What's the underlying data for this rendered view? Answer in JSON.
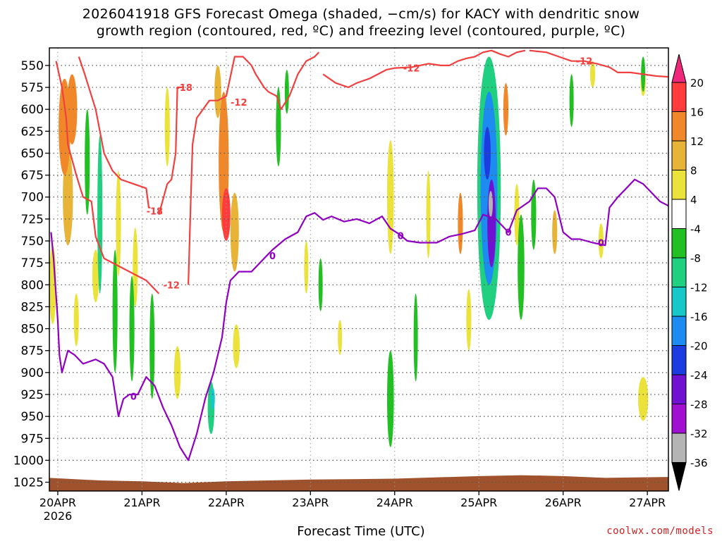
{
  "title_line1": "2026041918 GFS Forecast Omega (shaded, −cm/s) for KACY with dendritic snow",
  "title_line2": "growth region (contoured, red, ºC) and freezing level (contoured, purple, ºC)",
  "xlabel": "Forecast Time (UTC)",
  "credit": "coolwx.com/models",
  "colors": {
    "dgz_contour": "#f04040",
    "freezing_contour": "#9000c0",
    "terrain": "#a0522d",
    "grid": "#555555"
  },
  "chart_data": {
    "type": "heatmap",
    "x_ticks": [
      "20APR",
      "21APR",
      "22APR",
      "23APR",
      "24APR",
      "25APR",
      "26APR",
      "27APR"
    ],
    "x_sub_label": "2026",
    "y_ticks": [
      550,
      575,
      600,
      625,
      650,
      675,
      700,
      725,
      750,
      775,
      800,
      825,
      850,
      875,
      900,
      925,
      950,
      975,
      1000,
      1025
    ],
    "y_range": [
      530,
      1035
    ],
    "y_unit": "hPa",
    "x_range_days": [
      -0.1,
      7.25
    ],
    "grid": true,
    "colorbar": {
      "labels": [
        "20",
        "16",
        "12",
        "8",
        "4",
        "-4",
        "-8",
        "-12",
        "-16",
        "-20",
        "-24",
        "-28",
        "-32",
        "-36"
      ],
      "bins": [
        {
          "from": 16,
          "to": 20,
          "color": "#ff3c3c"
        },
        {
          "from": 12,
          "to": 16,
          "color": "#f0882a"
        },
        {
          "from": 8,
          "to": 12,
          "color": "#e8b438"
        },
        {
          "from": 4,
          "to": 8,
          "color": "#ece23c"
        },
        {
          "from": -4,
          "to": 4,
          "color": "#ffffff"
        },
        {
          "from": -8,
          "to": -4,
          "color": "#22c022"
        },
        {
          "from": -12,
          "to": -8,
          "color": "#20d080"
        },
        {
          "from": -16,
          "to": -12,
          "color": "#18c8c8"
        },
        {
          "from": -20,
          "to": -16,
          "color": "#1c8cf0"
        },
        {
          "from": -24,
          "to": -20,
          "color": "#1c3ce0"
        },
        {
          "from": -28,
          "to": -24,
          "color": "#7010d0"
        },
        {
          "from": -32,
          "to": -28,
          "color": "#a010d0"
        },
        {
          "from": -36,
          "to": -32,
          "color": "#b4b4b4"
        }
      ],
      "top_arrow_color": "#f0287c",
      "bottom_arrow_color": "#000000"
    },
    "omega_blobs": [
      {
        "t": 0.08,
        "p": 620,
        "dt": 0.07,
        "dp": 110,
        "v": 14
      },
      {
        "t": 0.12,
        "p": 700,
        "dt": 0.06,
        "dp": 110,
        "v": 10
      },
      {
        "t": 0.17,
        "p": 600,
        "dt": 0.06,
        "dp": 80,
        "v": 14
      },
      {
        "t": -0.06,
        "p": 800,
        "dt": 0.04,
        "dp": 90,
        "v": 6
      },
      {
        "t": 0.22,
        "p": 840,
        "dt": 0.03,
        "dp": 60,
        "v": 6
      },
      {
        "t": 0.45,
        "p": 790,
        "dt": 0.04,
        "dp": 60,
        "v": 6
      },
      {
        "t": 0.72,
        "p": 730,
        "dt": 0.03,
        "dp": 120,
        "v": 6
      },
      {
        "t": 0.92,
        "p": 780,
        "dt": 0.03,
        "dp": 90,
        "v": 6
      },
      {
        "t": 1.3,
        "p": 620,
        "dt": 0.03,
        "dp": 90,
        "v": 6
      },
      {
        "t": 1.42,
        "p": 900,
        "dt": 0.04,
        "dp": 60,
        "v": 6
      },
      {
        "t": 1.97,
        "p": 660,
        "dt": 0.06,
        "dp": 160,
        "v": 14
      },
      {
        "t": 2.0,
        "p": 720,
        "dt": 0.05,
        "dp": 60,
        "v": 18
      },
      {
        "t": 1.9,
        "p": 580,
        "dt": 0.04,
        "dp": 60,
        "v": 8
      },
      {
        "t": 2.1,
        "p": 740,
        "dt": 0.05,
        "dp": 90,
        "v": 10
      },
      {
        "t": 2.12,
        "p": 870,
        "dt": 0.04,
        "dp": 50,
        "v": 6
      },
      {
        "t": 2.95,
        "p": 780,
        "dt": 0.02,
        "dp": 60,
        "v": 6
      },
      {
        "t": 3.35,
        "p": 860,
        "dt": 0.02,
        "dp": 40,
        "v": 6
      },
      {
        "t": 3.95,
        "p": 700,
        "dt": 0.04,
        "dp": 130,
        "v": 6
      },
      {
        "t": 4.4,
        "p": 720,
        "dt": 0.02,
        "dp": 100,
        "v": 6
      },
      {
        "t": 4.78,
        "p": 730,
        "dt": 0.03,
        "dp": 70,
        "v": 12
      },
      {
        "t": 4.88,
        "p": 840,
        "dt": 0.03,
        "dp": 70,
        "v": 6
      },
      {
        "t": 5.32,
        "p": 600,
        "dt": 0.03,
        "dp": 60,
        "v": 12
      },
      {
        "t": 5.45,
        "p": 720,
        "dt": 0.03,
        "dp": 70,
        "v": 6
      },
      {
        "t": 5.9,
        "p": 740,
        "dt": 0.03,
        "dp": 50,
        "v": 10
      },
      {
        "t": 6.45,
        "p": 750,
        "dt": 0.03,
        "dp": 40,
        "v": 6
      },
      {
        "t": 6.35,
        "p": 560,
        "dt": 0.03,
        "dp": 30,
        "v": 6
      },
      {
        "t": 6.95,
        "p": 570,
        "dt": 0.03,
        "dp": 30,
        "v": 6
      },
      {
        "t": 6.95,
        "p": 930,
        "dt": 0.06,
        "dp": 50,
        "v": 6
      },
      {
        "t": 0.35,
        "p": 660,
        "dt": 0.03,
        "dp": 120,
        "v": -8
      },
      {
        "t": 0.5,
        "p": 720,
        "dt": 0.03,
        "dp": 180,
        "v": -10
      },
      {
        "t": 0.68,
        "p": 830,
        "dt": 0.03,
        "dp": 140,
        "v": -8
      },
      {
        "t": 0.88,
        "p": 850,
        "dt": 0.03,
        "dp": 120,
        "v": -8
      },
      {
        "t": 1.12,
        "p": 870,
        "dt": 0.03,
        "dp": 120,
        "v": -8
      },
      {
        "t": 1.82,
        "p": 940,
        "dt": 0.04,
        "dp": 60,
        "v": -10
      },
      {
        "t": 1.84,
        "p": 930,
        "dt": 0.02,
        "dp": 25,
        "v": -16
      },
      {
        "t": 2.62,
        "p": 620,
        "dt": 0.03,
        "dp": 90,
        "v": -8
      },
      {
        "t": 2.72,
        "p": 580,
        "dt": 0.02,
        "dp": 50,
        "v": -8
      },
      {
        "t": 3.12,
        "p": 800,
        "dt": 0.02,
        "dp": 60,
        "v": -8
      },
      {
        "t": 3.95,
        "p": 930,
        "dt": 0.04,
        "dp": 110,
        "v": -8
      },
      {
        "t": 4.25,
        "p": 860,
        "dt": 0.02,
        "dp": 100,
        "v": -6
      },
      {
        "t": 5.12,
        "p": 690,
        "dt": 0.14,
        "dp": 300,
        "v": -12
      },
      {
        "t": 5.12,
        "p": 690,
        "dt": 0.1,
        "dp": 220,
        "v": -18
      },
      {
        "t": 5.1,
        "p": 650,
        "dt": 0.04,
        "dp": 60,
        "v": -22
      },
      {
        "t": 5.15,
        "p": 730,
        "dt": 0.05,
        "dp": 100,
        "v": -26
      },
      {
        "t": 5.14,
        "p": 708,
        "dt": 0.02,
        "dp": 30,
        "v": -34
      },
      {
        "t": 5.5,
        "p": 780,
        "dt": 0.04,
        "dp": 120,
        "v": -8
      },
      {
        "t": 5.65,
        "p": 720,
        "dt": 0.03,
        "dp": 80,
        "v": -6
      },
      {
        "t": 6.1,
        "p": 590,
        "dt": 0.02,
        "dp": 60,
        "v": -8
      },
      {
        "t": 6.95,
        "p": 560,
        "dt": 0.02,
        "dp": 40,
        "v": -6
      }
    ],
    "contours": [
      {
        "name": "dgz_-18_a",
        "level": -18,
        "color_key": "dgz_contour",
        "points": [
          [
            -0.02,
            545
          ],
          [
            0.05,
            575
          ],
          [
            0.1,
            610
          ],
          [
            0.12,
            640
          ],
          [
            0.22,
            675
          ],
          [
            0.3,
            700
          ],
          [
            0.4,
            705
          ],
          [
            0.45,
            745
          ],
          [
            0.55,
            770
          ],
          [
            1.05,
            795
          ],
          [
            1.2,
            810
          ]
        ]
      },
      {
        "name": "dgz_-18_b",
        "level": -18,
        "color_key": "dgz_contour",
        "points": [
          [
            0.25,
            540
          ],
          [
            0.32,
            560
          ],
          [
            0.45,
            600
          ],
          [
            0.5,
            625
          ],
          [
            0.55,
            650
          ],
          [
            0.65,
            670
          ],
          [
            0.75,
            680
          ],
          [
            1.05,
            690
          ],
          [
            1.08,
            712
          ],
          [
            1.1,
            712
          ]
        ]
      },
      {
        "name": "dgz_-18_c",
        "level": -18,
        "color_key": "dgz_contour",
        "points": [
          [
            1.2,
            720
          ],
          [
            1.3,
            685
          ],
          [
            1.35,
            680
          ],
          [
            1.4,
            650
          ],
          [
            1.42,
            575
          ],
          [
            1.5,
            575
          ]
        ]
      },
      {
        "name": "dgz_-12_a",
        "level": -12,
        "color_key": "dgz_contour",
        "points": [
          [
            1.55,
            800
          ],
          [
            1.58,
            700
          ],
          [
            1.6,
            640
          ],
          [
            1.65,
            610
          ],
          [
            1.8,
            590
          ],
          [
            1.9,
            590
          ],
          [
            2.0,
            585
          ],
          [
            2.1,
            540
          ],
          [
            2.2,
            540
          ],
          [
            2.3,
            550
          ],
          [
            2.35,
            560
          ],
          [
            2.45,
            575
          ],
          [
            2.5,
            580
          ],
          [
            2.6,
            585
          ],
          [
            2.65,
            600
          ],
          [
            2.75,
            585
          ],
          [
            2.85,
            560
          ],
          [
            2.95,
            545
          ],
          [
            3.05,
            540
          ],
          [
            3.1,
            535
          ]
        ]
      },
      {
        "name": "dgz_-12_b",
        "level": -12,
        "color_key": "dgz_contour",
        "points": [
          [
            3.15,
            560
          ],
          [
            3.3,
            570
          ],
          [
            3.45,
            575
          ],
          [
            3.55,
            570
          ],
          [
            3.7,
            565
          ],
          [
            3.8,
            560
          ],
          [
            3.9,
            555
          ],
          [
            4.0,
            553
          ],
          [
            4.2,
            552
          ],
          [
            4.3,
            550
          ],
          [
            4.4,
            548
          ],
          [
            4.55,
            550
          ],
          [
            4.65,
            550
          ],
          [
            4.75,
            545
          ],
          [
            4.85,
            542
          ],
          [
            4.95,
            540
          ],
          [
            5.05,
            535
          ],
          [
            5.15,
            533
          ],
          [
            5.25,
            537
          ],
          [
            5.35,
            540
          ],
          [
            5.45,
            535
          ],
          [
            5.55,
            533
          ]
        ]
      },
      {
        "name": "dgz_-12_c",
        "level": -12,
        "color_key": "dgz_contour",
        "points": [
          [
            5.6,
            533
          ],
          [
            5.8,
            535
          ],
          [
            5.95,
            540
          ],
          [
            6.1,
            545
          ],
          [
            6.25,
            545
          ],
          [
            6.4,
            548
          ],
          [
            6.55,
            552
          ],
          [
            6.65,
            558
          ],
          [
            6.8,
            558
          ],
          [
            6.95,
            560
          ],
          [
            7.1,
            562
          ],
          [
            7.25,
            563
          ]
        ]
      },
      {
        "name": "freezing_0",
        "level": 0,
        "color_key": "freezing_contour",
        "points": [
          [
            -0.08,
            740
          ],
          [
            -0.05,
            770
          ],
          [
            0.0,
            840
          ],
          [
            0.02,
            880
          ],
          [
            0.05,
            900
          ],
          [
            0.12,
            875
          ],
          [
            0.2,
            880
          ],
          [
            0.3,
            890
          ],
          [
            0.45,
            885
          ],
          [
            0.55,
            890
          ],
          [
            0.65,
            905
          ],
          [
            0.72,
            950
          ],
          [
            0.78,
            930
          ],
          [
            0.85,
            925
          ],
          [
            0.95,
            925
          ],
          [
            1.05,
            905
          ],
          [
            1.15,
            915
          ],
          [
            1.25,
            940
          ],
          [
            1.35,
            960
          ],
          [
            1.45,
            985
          ],
          [
            1.55,
            1000
          ],
          [
            1.65,
            970
          ],
          [
            1.75,
            930
          ],
          [
            1.85,
            900
          ],
          [
            1.95,
            860
          ],
          [
            2.0,
            820
          ],
          [
            2.05,
            795
          ],
          [
            2.15,
            785
          ],
          [
            2.3,
            785
          ],
          [
            2.45,
            770
          ],
          [
            2.55,
            760
          ],
          [
            2.7,
            748
          ],
          [
            2.85,
            740
          ],
          [
            2.95,
            722
          ],
          [
            3.05,
            718
          ],
          [
            3.15,
            726
          ],
          [
            3.25,
            722
          ],
          [
            3.4,
            728
          ],
          [
            3.55,
            725
          ],
          [
            3.7,
            730
          ],
          [
            3.85,
            722
          ],
          [
            3.95,
            736
          ],
          [
            4.05,
            742
          ],
          [
            4.15,
            750
          ],
          [
            4.3,
            752
          ],
          [
            4.5,
            752
          ],
          [
            4.65,
            745
          ],
          [
            4.8,
            742
          ],
          [
            4.95,
            738
          ],
          [
            5.05,
            720
          ],
          [
            5.2,
            725
          ],
          [
            5.35,
            740
          ],
          [
            5.45,
            715
          ],
          [
            5.6,
            705
          ],
          [
            5.7,
            690
          ],
          [
            5.8,
            690
          ],
          [
            5.9,
            700
          ],
          [
            6.0,
            740
          ],
          [
            6.1,
            748
          ],
          [
            6.2,
            748
          ],
          [
            6.35,
            752
          ],
          [
            6.5,
            755
          ],
          [
            6.55,
            712
          ],
          [
            6.65,
            700
          ],
          [
            6.75,
            690
          ],
          [
            6.85,
            680
          ],
          [
            6.95,
            685
          ],
          [
            7.05,
            695
          ],
          [
            7.15,
            705
          ],
          [
            7.25,
            710
          ]
        ]
      }
    ],
    "contour_labels": [
      {
        "text": "-18",
        "t": 1.5,
        "p": 575,
        "color_key": "dgz_contour"
      },
      {
        "text": "-12",
        "t": 2.15,
        "p": 592,
        "color_key": "dgz_contour"
      },
      {
        "text": "-12",
        "t": 4.2,
        "p": 553,
        "color_key": "dgz_contour"
      },
      {
        "text": "-12",
        "t": 6.25,
        "p": 545,
        "color_key": "dgz_contour"
      },
      {
        "text": "-18",
        "t": 1.15,
        "p": 716,
        "color_key": "dgz_contour"
      },
      {
        "text": "-12",
        "t": 1.35,
        "p": 800,
        "color_key": "dgz_contour"
      },
      {
        "text": "0",
        "t": 0.9,
        "p": 927,
        "color_key": "freezing_contour"
      },
      {
        "text": "0",
        "t": 2.55,
        "p": 767,
        "color_key": "freezing_contour"
      },
      {
        "text": "0",
        "t": 4.07,
        "p": 744,
        "color_key": "freezing_contour"
      },
      {
        "text": "0",
        "t": 5.35,
        "p": 740,
        "color_key": "freezing_contour"
      },
      {
        "text": "0",
        "t": 6.45,
        "p": 752,
        "color_key": "freezing_contour"
      }
    ],
    "terrain_top": [
      [
        -0.1,
        1020
      ],
      [
        0.5,
        1023
      ],
      [
        1.0,
        1024
      ],
      [
        1.5,
        1026
      ],
      [
        2.0,
        1024
      ],
      [
        3.0,
        1022
      ],
      [
        4.0,
        1021
      ],
      [
        5.0,
        1018
      ],
      [
        5.5,
        1017
      ],
      [
        6.0,
        1018
      ],
      [
        6.5,
        1020
      ],
      [
        7.25,
        1019
      ]
    ]
  }
}
